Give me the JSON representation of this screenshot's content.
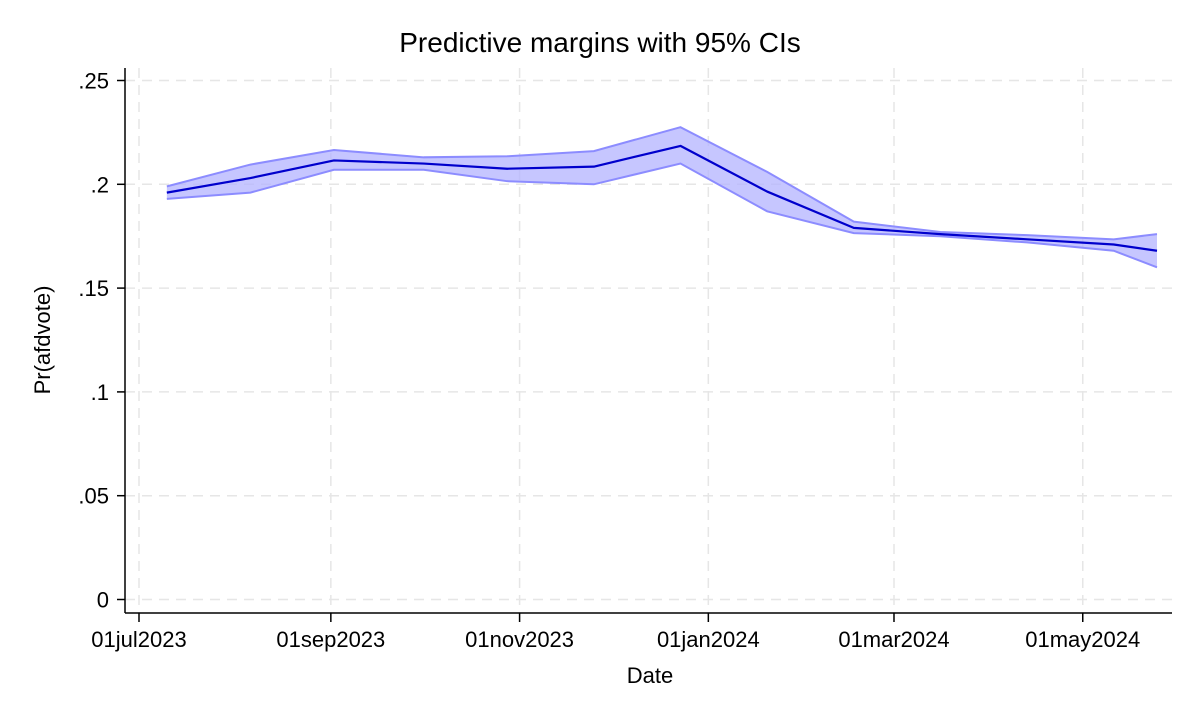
{
  "chart_data": {
    "type": "line",
    "title": "Predictive margins with 95% CIs",
    "xlabel": "Date",
    "ylabel": "Pr(afdvote)",
    "ylim": [
      0,
      0.25
    ],
    "xlim": [
      "2023-07-01",
      "2024-05-25"
    ],
    "y_ticks": [
      {
        "value": 0,
        "label": "0"
      },
      {
        "value": 0.05,
        "label": ".05"
      },
      {
        "value": 0.1,
        "label": ".1"
      },
      {
        "value": 0.15,
        "label": ".15"
      },
      {
        "value": 0.2,
        "label": ".2"
      },
      {
        "value": 0.25,
        "label": ".25"
      }
    ],
    "x_ticks": [
      {
        "value": "2023-07-01",
        "label": "01jul2023"
      },
      {
        "value": "2023-09-01",
        "label": "01sep2023"
      },
      {
        "value": "2023-11-01",
        "label": "01nov2023"
      },
      {
        "value": "2024-01-01",
        "label": "01jan2024"
      },
      {
        "value": "2024-03-01",
        "label": "01mar2024"
      },
      {
        "value": "2024-05-01",
        "label": "01may2024"
      }
    ],
    "grid": true,
    "legend": "none",
    "colors": {
      "line": "#0000cc",
      "band": "#b3b3ff",
      "band_edge": "#8c8cff"
    },
    "series": [
      {
        "x": [
          "2023-07-10",
          "2023-08-06",
          "2023-09-02",
          "2023-10-01",
          "2023-10-28",
          "2023-11-25",
          "2023-12-23",
          "2024-01-20",
          "2024-02-17",
          "2024-03-16",
          "2024-04-13",
          "2024-05-11",
          "2024-05-25"
        ],
        "values": [
          0.196,
          0.203,
          0.2115,
          0.21,
          0.2075,
          0.2085,
          0.2185,
          0.1965,
          0.179,
          0.176,
          0.1735,
          0.171,
          0.168
        ],
        "ci_low": [
          0.193,
          0.196,
          0.207,
          0.207,
          0.2015,
          0.2,
          0.21,
          0.187,
          0.1765,
          0.175,
          0.172,
          0.168,
          0.16
        ],
        "ci_high": [
          0.199,
          0.2095,
          0.2165,
          0.213,
          0.2135,
          0.216,
          0.2275,
          0.206,
          0.182,
          0.177,
          0.1755,
          0.1735,
          0.176
        ]
      }
    ]
  }
}
